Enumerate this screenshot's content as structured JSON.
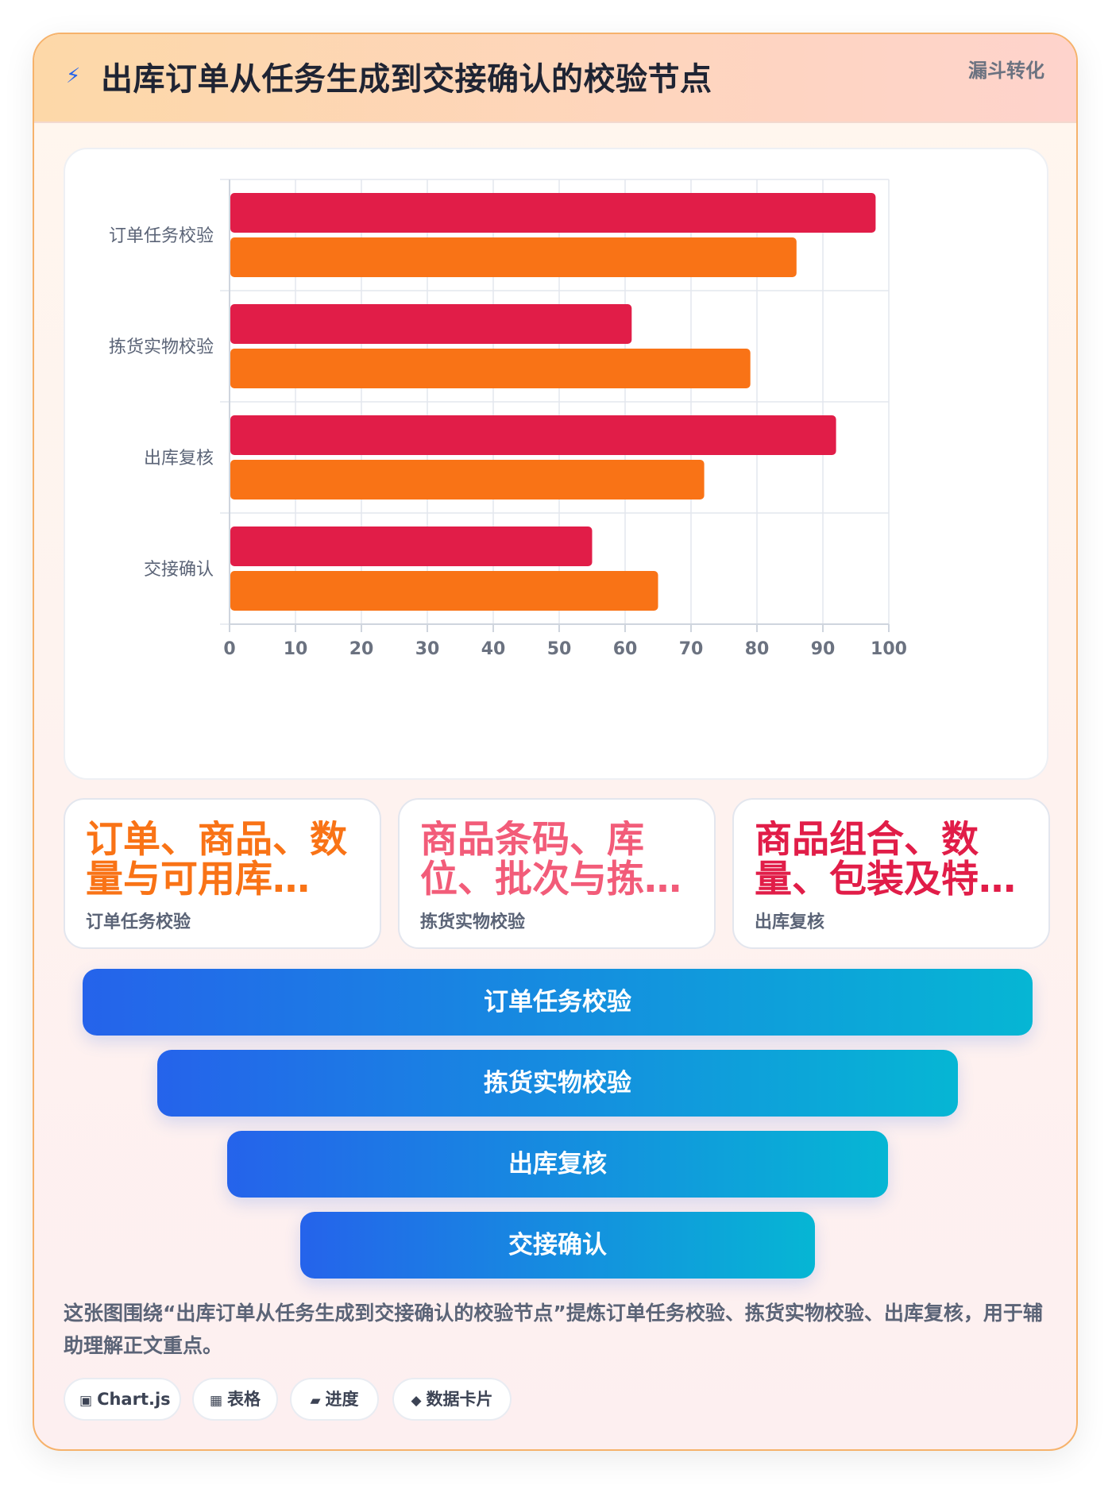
{
  "header": {
    "icon": "lightning-icon",
    "title": "出库订单从任务生成到交接确认的校验节点",
    "tag": "漏斗转化"
  },
  "chart_data": {
    "type": "bar",
    "orientation": "horizontal",
    "categories": [
      "订单任务校验",
      "拣货实物校验",
      "出库复核",
      "交接确认"
    ],
    "series": [
      {
        "values": [
          98,
          61,
          92,
          55
        ],
        "color": "#e11d48"
      },
      {
        "values": [
          86,
          79,
          72,
          65
        ],
        "color": "#f97316"
      }
    ],
    "xlim": [
      0,
      100
    ],
    "xticks": [
      0,
      10,
      20,
      30,
      40,
      50,
      60,
      70,
      80,
      90,
      100
    ],
    "grid": true
  },
  "cards": [
    {
      "big": "订单、商品、数量与可用库…",
      "sub": "订单任务校验",
      "color": "#f97316"
    },
    {
      "big": "商品条码、库位、批次与拣…",
      "sub": "拣货实物校验",
      "color": "#f25c79"
    },
    {
      "big": "商品组合、数量、包装及特…",
      "sub": "出库复核",
      "color": "#e11d48"
    }
  ],
  "funnel": {
    "stages": [
      {
        "label": "订单任务校验"
      },
      {
        "label": "拣货实物校验"
      },
      {
        "label": "出库复核"
      },
      {
        "label": "交接确认"
      }
    ]
  },
  "description": "这张图围绕“出库订单从任务生成到交接确认的校验节点”提炼订单任务校验、拣货实物校验、出库复核，用于辅助理解正文重点。",
  "chips": [
    {
      "icon": "chart-icon",
      "glyph": "▣",
      "label": "Chart.js"
    },
    {
      "icon": "table-icon",
      "glyph": "▦",
      "label": "表格"
    },
    {
      "icon": "progress-icon",
      "glyph": "▰",
      "label": "进度"
    },
    {
      "icon": "card-icon",
      "glyph": "◆",
      "label": "数据卡片"
    }
  ]
}
